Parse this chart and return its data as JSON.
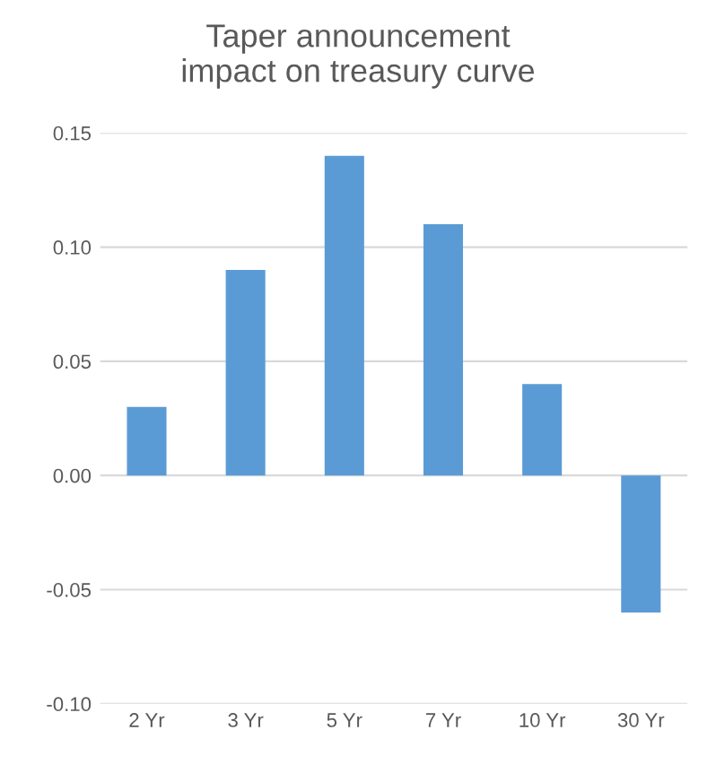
{
  "chart_data": {
    "type": "bar",
    "title": "Taper announcement\nimpact on treasury curve",
    "categories": [
      "2 Yr",
      "3 Yr",
      "5 Yr",
      "7 Yr",
      "10 Yr",
      "30 Yr"
    ],
    "values": [
      0.03,
      0.09,
      0.14,
      0.11,
      0.04,
      -0.06
    ],
    "color": "#5b9bd5",
    "ylim": [
      -0.1,
      0.15
    ],
    "yticks": [
      {
        "value": -0.1,
        "label": "-0.10"
      },
      {
        "value": -0.05,
        "label": "-0.05"
      },
      {
        "value": 0,
        "label": "0.00"
      },
      {
        "value": 0.05,
        "label": "0.05"
      },
      {
        "value": 0.1,
        "label": "0.10"
      },
      {
        "value": 0.15,
        "label": "0.15"
      }
    ],
    "grid": "y"
  }
}
